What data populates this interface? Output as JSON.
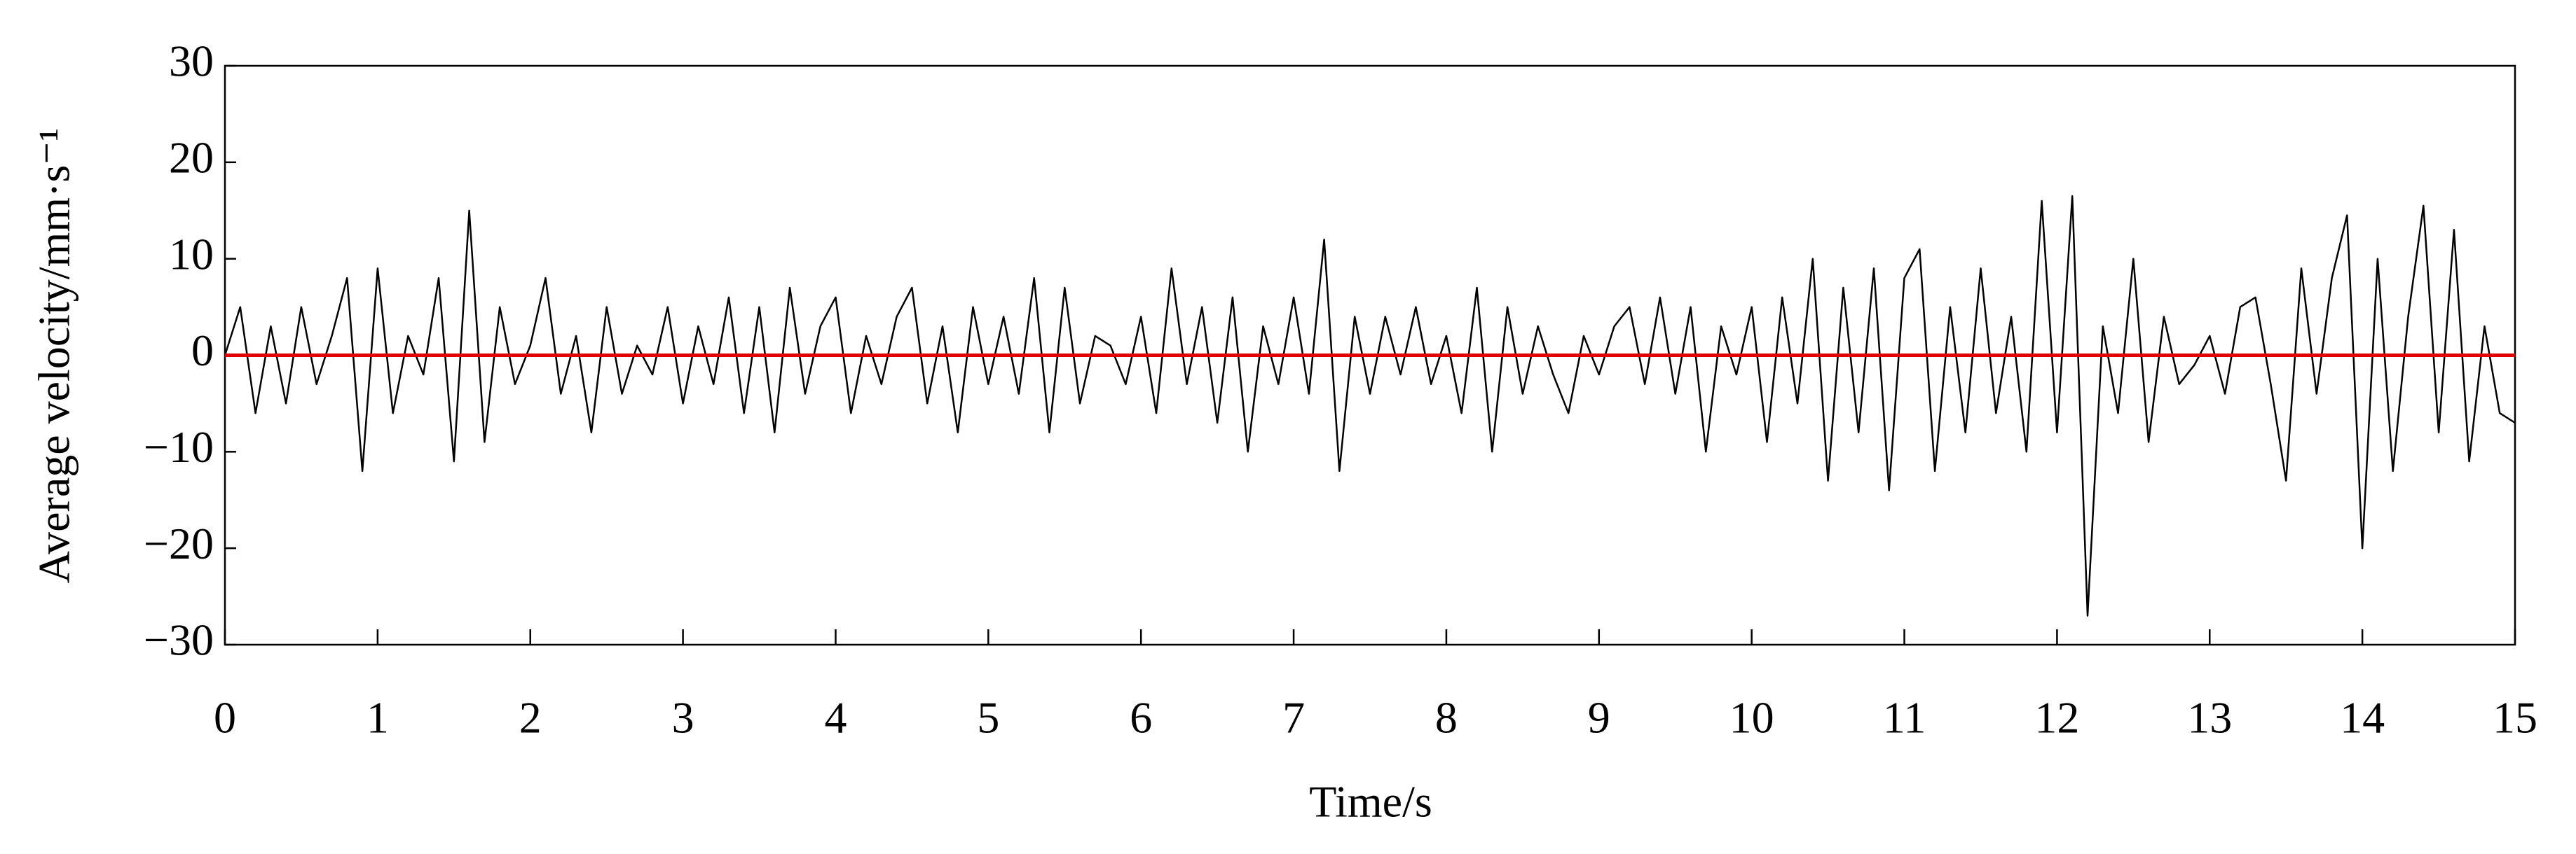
{
  "chart_data": {
    "type": "line",
    "x_label": "Time/s",
    "y_label": "Average velocity/mm·s⁻¹",
    "x": [
      0,
      0.1,
      0.2,
      0.3,
      0.4,
      0.5,
      0.6,
      0.7,
      0.8,
      0.9,
      1,
      1.1,
      1.2,
      1.3,
      1.4,
      1.5,
      1.6,
      1.7,
      1.8,
      1.9,
      2,
      2.1,
      2.2,
      2.3,
      2.4,
      2.5,
      2.6,
      2.7,
      2.8,
      2.9,
      3,
      3.1,
      3.2,
      3.3,
      3.4,
      3.5,
      3.6,
      3.7,
      3.8,
      3.9,
      4,
      4.1,
      4.2,
      4.3,
      4.4,
      4.5,
      4.6,
      4.7,
      4.8,
      4.9,
      5,
      5.1,
      5.2,
      5.3,
      5.4,
      5.5,
      5.6,
      5.7,
      5.8,
      5.9,
      6,
      6.1,
      6.2,
      6.3,
      6.4,
      6.5,
      6.6,
      6.7,
      6.8,
      6.9,
      7,
      7.1,
      7.2,
      7.3,
      7.4,
      7.5,
      7.6,
      7.7,
      7.8,
      7.9,
      8,
      8.1,
      8.2,
      8.3,
      8.4,
      8.5,
      8.6,
      8.7,
      8.8,
      8.9,
      9,
      9.1,
      9.2,
      9.3,
      9.4,
      9.5,
      9.6,
      9.7,
      9.8,
      9.9,
      10,
      10.1,
      10.2,
      10.3,
      10.4,
      10.5,
      10.6,
      10.7,
      10.8,
      10.9,
      11,
      11.1,
      11.2,
      11.3,
      11.4,
      11.5,
      11.6,
      11.7,
      11.8,
      11.9,
      12,
      12.1,
      12.2,
      12.3,
      12.4,
      12.5,
      12.6,
      12.7,
      12.8,
      12.9,
      13,
      13.1,
      13.2,
      13.3,
      13.4,
      13.5,
      13.6,
      13.7,
      13.8,
      13.9,
      14,
      14.1,
      14.2,
      14.3,
      14.4,
      14.5,
      14.6,
      14.7,
      14.8,
      14.9,
      15
    ],
    "series": [
      {
        "color": "#000000",
        "values": [
          0,
          5,
          -6,
          3,
          -5,
          5,
          -3,
          2,
          8,
          -12,
          9,
          -6,
          2,
          -2,
          8,
          -11,
          15,
          -9,
          5,
          -3,
          1,
          8,
          -4,
          2,
          -8,
          5,
          -4,
          1,
          -2,
          5,
          -5,
          3,
          -3,
          6,
          -6,
          5,
          -8,
          7,
          -4,
          3,
          6,
          -6,
          2,
          -3,
          4,
          7,
          -5,
          3,
          -8,
          5,
          -3,
          4,
          -4,
          8,
          -8,
          7,
          -5,
          2,
          1,
          -3,
          4,
          -6,
          9,
          -3,
          5,
          -7,
          6,
          -10,
          3,
          -3,
          6,
          -4,
          12,
          -12,
          4,
          -4,
          4,
          -2,
          5,
          -3,
          2,
          -6,
          7,
          -10,
          5,
          -4,
          3,
          -2,
          -6,
          2,
          -2,
          3,
          5,
          -3,
          6,
          -4,
          5,
          -10,
          3,
          -2,
          5,
          -9,
          6,
          -5,
          10,
          -13,
          7,
          -8,
          9,
          -14,
          8,
          11,
          -12,
          5,
          -8,
          9,
          -6,
          4,
          -10,
          16,
          -8,
          16.5,
          -27,
          3,
          -6,
          10,
          -9,
          4,
          -3,
          -1,
          2,
          -4,
          5,
          6,
          -3,
          -13,
          9,
          -4,
          8,
          14.5,
          -20,
          10,
          -12,
          4,
          15.5,
          -8,
          13,
          -11,
          3,
          -6,
          -7
        ]
      }
    ],
    "reference_line": {
      "y": 0,
      "color": "#e00000"
    },
    "xlim": [
      0,
      15
    ],
    "xticks": [
      0,
      1,
      2,
      3,
      4,
      5,
      6,
      7,
      8,
      9,
      10,
      11,
      12,
      13,
      14,
      15
    ],
    "ylim": [
      -30,
      30
    ],
    "yticks": [
      {
        "value": -30,
        "label": "−30"
      },
      {
        "value": -20,
        "label": "−20"
      },
      {
        "value": -10,
        "label": "−10"
      },
      0,
      10,
      20,
      30
    ]
  }
}
